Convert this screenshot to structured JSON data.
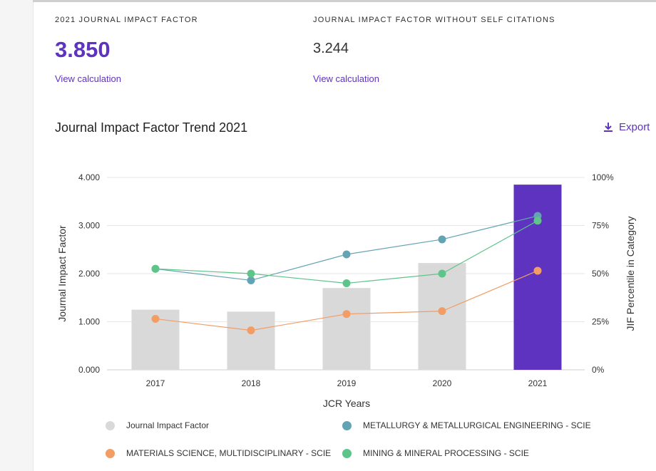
{
  "metrics": {
    "jif_label": "2021 JOURNAL IMPACT FACTOR",
    "jif_value": "3.850",
    "jif_link": "View calculation",
    "jif_no_self_label": "JOURNAL IMPACT FACTOR WITHOUT SELF CITATIONS",
    "jif_no_self_value": "3.244",
    "jif_no_self_link": "View calculation"
  },
  "chart_header": {
    "title": "Journal Impact Factor Trend 2021",
    "export_label": "Export"
  },
  "colors": {
    "accent": "#5e33bf",
    "bar_default": "#d9d9d9",
    "metallurgy": "#64a3b3",
    "materials": "#f29d66",
    "mining": "#5fc48a"
  },
  "chart_data": {
    "type": "bar",
    "title": "Journal Impact Factor Trend 2021",
    "xlabel": "JCR Years",
    "ylabel": "Journal Impact Factor",
    "y2label": "JIF Percentile in Category",
    "ylim": [
      0,
      4
    ],
    "y2lim": [
      0,
      100
    ],
    "yticks": [
      "0.000",
      "1.000",
      "2.000",
      "3.000",
      "4.000"
    ],
    "y2ticks": [
      "0%",
      "25%",
      "50%",
      "75%",
      "100%"
    ],
    "categories": [
      "2017",
      "2018",
      "2019",
      "2020",
      "2021"
    ],
    "bars": {
      "name": "Journal Impact Factor",
      "values": [
        1.25,
        1.21,
        1.7,
        2.22,
        3.85
      ],
      "highlight_index": 4
    },
    "series": [
      {
        "name": "METALLURGY & METALLURGICAL ENGINEERING - SCIE",
        "color_key": "metallurgy",
        "axis": "percentile",
        "values": [
          52.5,
          46.5,
          60.0,
          67.8,
          80.0
        ]
      },
      {
        "name": "MATERIALS SCIENCE, MULTIDISCIPLINARY - SCIE",
        "color_key": "materials",
        "axis": "percentile",
        "values": [
          26.5,
          20.5,
          29.0,
          30.5,
          51.5
        ]
      },
      {
        "name": "MINING & MINERAL PROCESSING - SCIE",
        "color_key": "mining",
        "axis": "percentile",
        "values": [
          52.5,
          50.0,
          45.0,
          50.0,
          77.5
        ]
      }
    ],
    "legend": [
      {
        "label": "Journal Impact Factor",
        "color_key": "bar_default"
      },
      {
        "label": "METALLURGY & METALLURGICAL ENGINEERING - SCIE",
        "color_key": "metallurgy"
      },
      {
        "label": "MATERIALS SCIENCE, MULTIDISCIPLINARY - SCIE",
        "color_key": "materials"
      },
      {
        "label": "MINING & MINERAL PROCESSING - SCIE",
        "color_key": "mining"
      }
    ]
  }
}
